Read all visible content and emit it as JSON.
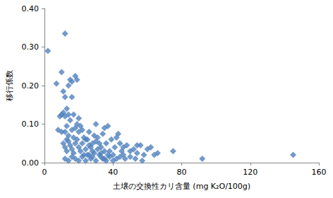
{
  "chart_data": {
    "type": "scatter",
    "x_label": "土壌の交換性カリ含量 (mg K₂O/100g)",
    "y_label": "移行係数",
    "color": "#4f81bd",
    "marker": "diamond",
    "grid": false,
    "xlim": [
      0,
      160
    ],
    "xticks": [
      0,
      40,
      80,
      120,
      160
    ],
    "ylim": [
      0,
      0.4
    ],
    "yticks": [
      {
        "value": 0,
        "label": "0.00"
      },
      {
        "value": 0.1,
        "label": "0.10"
      },
      {
        "value": 0.2,
        "label": "0.20"
      },
      {
        "value": 0.3,
        "label": "0.30"
      },
      {
        "value": 0.4,
        "label": "0.40"
      }
    ],
    "x": [
      2,
      12,
      7,
      10,
      11,
      14,
      15,
      16,
      18,
      19,
      12,
      13,
      11,
      9,
      10,
      12,
      14,
      16,
      15,
      8,
      10,
      12,
      14,
      16,
      18,
      20,
      22,
      11,
      12,
      13,
      14,
      15,
      16,
      17,
      18,
      19,
      20,
      21,
      22,
      23,
      24,
      25,
      26,
      27,
      28,
      29,
      30,
      31,
      32,
      33,
      34,
      35,
      36,
      37,
      38,
      39,
      40,
      41,
      42,
      43,
      44,
      45,
      46,
      48,
      50,
      52,
      54,
      56,
      58,
      60,
      62,
      64,
      66,
      75,
      92,
      145,
      12,
      14,
      16,
      18,
      20,
      22,
      24,
      26,
      28,
      30,
      32,
      34,
      36,
      38,
      40,
      19,
      21,
      23,
      25,
      13,
      17,
      27,
      29,
      31,
      33,
      35,
      37,
      44,
      47,
      50,
      53,
      57,
      20,
      17,
      13,
      24,
      26,
      28,
      30,
      33,
      35,
      42,
      46,
      54
    ],
    "values": [
      0.29,
      0.335,
      0.205,
      0.235,
      0.185,
      0.2,
      0.215,
      0.21,
      0.225,
      0.215,
      0.17,
      0.14,
      0.13,
      0.12,
      0.125,
      0.12,
      0.125,
      0.17,
      0.11,
      0.085,
      0.08,
      0.08,
      0.07,
      0.085,
      0.09,
      0.08,
      0.085,
      0.05,
      0.04,
      0.03,
      0.055,
      0.045,
      0.035,
      0.025,
      0.05,
      0.06,
      0.04,
      0.03,
      0.05,
      0.02,
      0.035,
      0.06,
      0.045,
      0.01,
      0.03,
      0.07,
      0.1,
      0.065,
      0.05,
      0.04,
      0.075,
      0.09,
      0.05,
      0.095,
      0.03,
      0.06,
      0.02,
      0.04,
      0.01,
      0.075,
      0.05,
      0.03,
      0.02,
      0.045,
      0.03,
      0.035,
      0.025,
      0.045,
      0.02,
      0.035,
      0.04,
      0.02,
      0.025,
      0.03,
      0.01,
      0.02,
      0.01,
      0.005,
      0.015,
      0.01,
      0.005,
      0.015,
      0.005,
      0.02,
      0.015,
      0.005,
      0.02,
      0.01,
      0.005,
      0.015,
      0.005,
      0.1,
      0.095,
      0.065,
      0.02,
      0.095,
      0.065,
      0.04,
      0.025,
      0.035,
      0.015,
      0.03,
      0.02,
      0.015,
      0.01,
      0.015,
      0.01,
      0.005,
      0.115,
      0.125,
      0.06,
      0.06,
      0.08,
      0.05,
      0.055,
      0.025,
      0.01,
      0.065,
      0.04,
      0.045
    ]
  }
}
